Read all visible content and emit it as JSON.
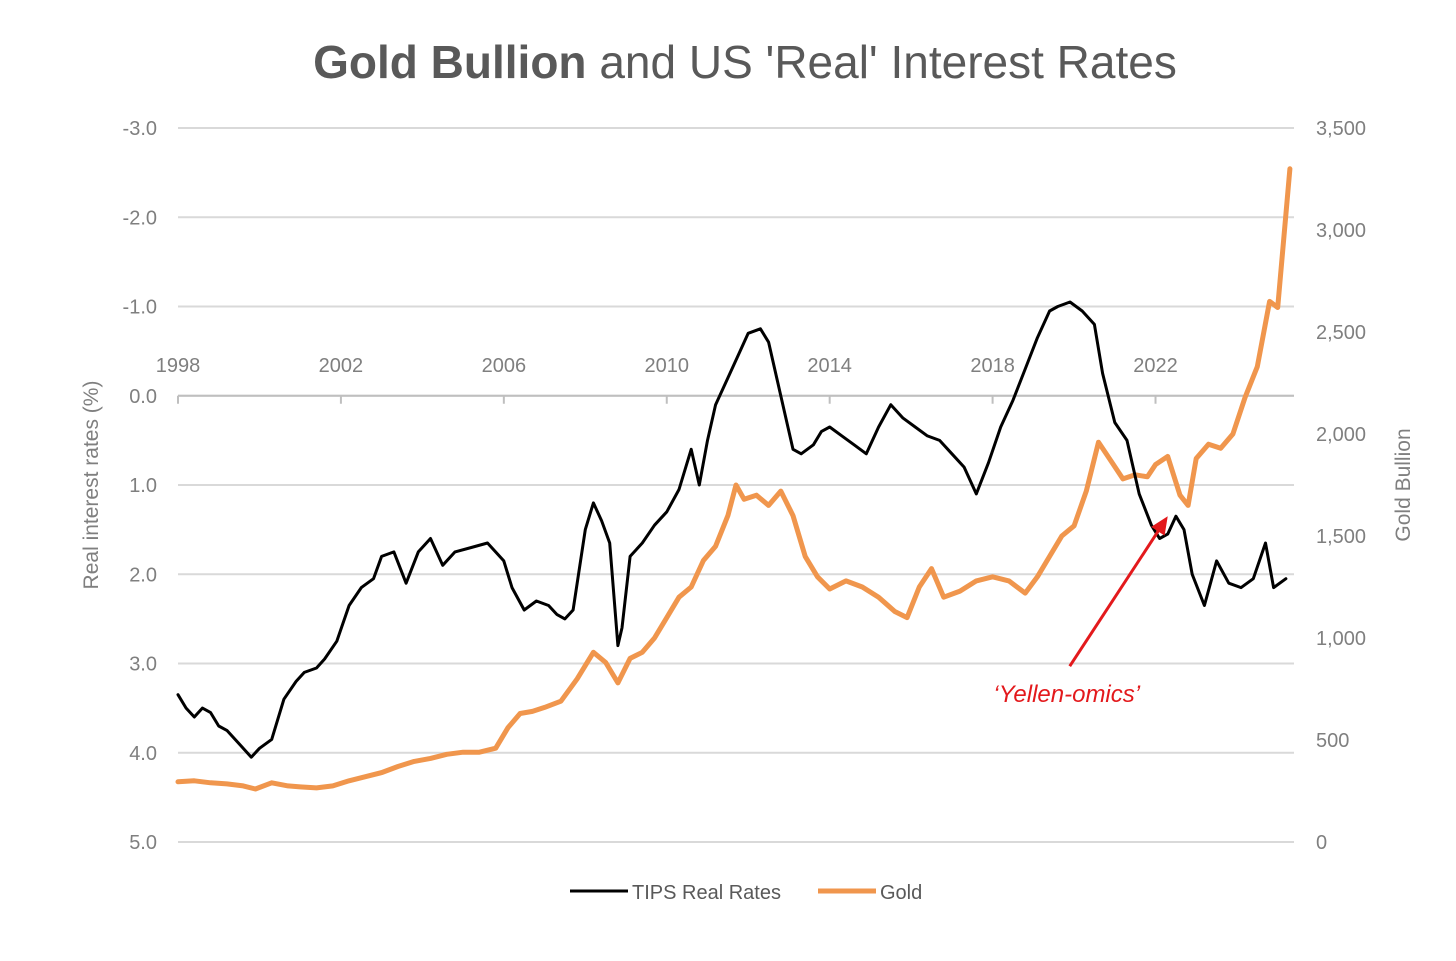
{
  "chart_data": {
    "type": "line",
    "title": {
      "bold": "Gold Bullion",
      "rest": " and US 'Real' Interest Rates"
    },
    "left_axis": {
      "label": "Real interest rates (%)",
      "range": [
        -3.0,
        5.0
      ],
      "inverted": true,
      "ticks": [
        "-3.0",
        "-2.0",
        "-1.0",
        "0.0",
        "1.0",
        "2.0",
        "3.0",
        "4.0",
        "5.0"
      ],
      "tick_values": [
        -3,
        -2,
        -1,
        0,
        1,
        2,
        3,
        4,
        5
      ]
    },
    "right_axis": {
      "label": "Gold Bullion",
      "range": [
        0,
        3500
      ],
      "ticks": [
        "0",
        "500",
        "1,000",
        "1,500",
        "2,000",
        "2,500",
        "3,000",
        "3,500"
      ],
      "tick_values": [
        0,
        500,
        1000,
        1500,
        2000,
        2500,
        3000,
        3500
      ]
    },
    "x_axis": {
      "range": [
        1998.0,
        2025.4
      ],
      "ticks": [
        "1998",
        "2002",
        "2006",
        "2010",
        "2014",
        "2018",
        "2022"
      ],
      "tick_values": [
        1998,
        2002,
        2006,
        2010,
        2014,
        2018,
        2022
      ]
    },
    "grid": true,
    "legend_position": "bottom",
    "colors": {
      "tips": "#000000",
      "gold": "#f0964d",
      "annotation": "#e3191c",
      "grid": "#d9d9d9"
    },
    "annotation": {
      "text": "‘Yellen-omics’",
      "x": 2022.3,
      "y_real_rate": 1.35
    },
    "series": [
      {
        "name": "TIPS Real Rates",
        "axis": "left",
        "x": [
          1998.0,
          1998.2,
          1998.4,
          1998.6,
          1998.8,
          1999.0,
          1999.2,
          1999.5,
          1999.8,
          2000.0,
          2000.3,
          2000.6,
          2000.9,
          2001.1,
          2001.4,
          2001.6,
          2001.9,
          2002.2,
          2002.5,
          2002.8,
          2003.0,
          2003.3,
          2003.6,
          2003.9,
          2004.2,
          2004.5,
          2004.8,
          2005.2,
          2005.6,
          2006.0,
          2006.2,
          2006.5,
          2006.8,
          2007.1,
          2007.3,
          2007.5,
          2007.7,
          2008.0,
          2008.2,
          2008.4,
          2008.6,
          2008.8,
          2008.9,
          2009.1,
          2009.4,
          2009.7,
          2010.0,
          2010.3,
          2010.6,
          2010.8,
          2011.0,
          2011.2,
          2011.5,
          2011.8,
          2012.0,
          2012.3,
          2012.5,
          2012.8,
          2013.1,
          2013.3,
          2013.6,
          2013.8,
          2014.0,
          2014.3,
          2014.6,
          2014.9,
          2015.2,
          2015.5,
          2015.8,
          2016.1,
          2016.4,
          2016.7,
          2017.0,
          2017.3,
          2017.6,
          2017.9,
          2018.2,
          2018.5,
          2018.8,
          2019.1,
          2019.4,
          2019.6,
          2019.9,
          2020.2,
          2020.5,
          2020.7,
          2021.0,
          2021.3,
          2021.6,
          2021.9,
          2022.1,
          2022.3,
          2022.5,
          2022.7,
          2022.9,
          2023.2,
          2023.5,
          2023.8,
          2024.1,
          2024.4,
          2024.7,
          2024.9,
          2025.2
        ],
        "y": [
          3.35,
          3.5,
          3.6,
          3.5,
          3.55,
          3.7,
          3.75,
          3.9,
          4.05,
          3.95,
          3.85,
          3.4,
          3.2,
          3.1,
          3.05,
          2.95,
          2.75,
          2.35,
          2.15,
          2.05,
          1.8,
          1.75,
          2.1,
          1.75,
          1.6,
          1.9,
          1.75,
          1.7,
          1.65,
          1.85,
          2.15,
          2.4,
          2.3,
          2.35,
          2.45,
          2.5,
          2.4,
          1.5,
          1.2,
          1.4,
          1.65,
          2.8,
          2.6,
          1.8,
          1.65,
          1.45,
          1.3,
          1.05,
          0.6,
          1.0,
          0.5,
          0.1,
          -0.2,
          -0.5,
          -0.7,
          -0.75,
          -0.6,
          0.0,
          0.6,
          0.65,
          0.55,
          0.4,
          0.35,
          0.45,
          0.55,
          0.65,
          0.35,
          0.1,
          0.25,
          0.35,
          0.45,
          0.5,
          0.65,
          0.8,
          1.1,
          0.75,
          0.35,
          0.05,
          -0.3,
          -0.65,
          -0.95,
          -1.0,
          -1.05,
          -0.95,
          -0.8,
          -0.25,
          0.3,
          0.5,
          1.1,
          1.45,
          1.6,
          1.55,
          1.35,
          1.5,
          2.0,
          2.35,
          1.85,
          2.1,
          2.15,
          2.05,
          1.65,
          2.15,
          2.05
        ],
        "values": [
          3.35,
          3.5,
          3.6,
          3.5,
          3.55,
          3.7,
          3.75,
          3.9,
          4.05,
          3.95,
          3.85,
          3.4,
          3.2,
          3.1,
          3.05,
          2.95,
          2.75,
          2.35,
          2.15,
          2.05,
          1.8,
          1.75,
          2.1,
          1.75,
          1.6,
          1.9,
          1.75,
          1.7,
          1.65,
          1.85,
          2.15,
          2.4,
          2.3,
          2.35,
          2.45,
          2.5,
          2.4,
          1.5,
          1.2,
          1.4,
          1.65,
          2.8,
          2.6,
          1.8,
          1.65,
          1.45,
          1.3,
          1.05,
          0.6,
          1.0,
          0.5,
          0.1,
          -0.2,
          -0.5,
          -0.7,
          -0.75,
          -0.6,
          0.0,
          0.6,
          0.65,
          0.55,
          0.4,
          0.35,
          0.45,
          0.55,
          0.65,
          0.35,
          0.1,
          0.25,
          0.35,
          0.45,
          0.5,
          0.65,
          0.8,
          1.1,
          0.75,
          0.35,
          0.05,
          -0.3,
          -0.65,
          -0.95,
          -1.0,
          -1.05,
          -0.95,
          -0.8,
          -0.25,
          0.3,
          0.5,
          1.1,
          1.45,
          1.6,
          1.55,
          1.35,
          1.5,
          2.0,
          2.35,
          1.85,
          2.1,
          2.15,
          2.05,
          1.65,
          2.15,
          2.05
        ]
      },
      {
        "name": "Gold",
        "axis": "right",
        "x": [
          1998.0,
          1998.4,
          1998.8,
          1999.2,
          1999.6,
          1999.9,
          2000.3,
          2000.7,
          2001.0,
          2001.4,
          2001.8,
          2002.2,
          2002.6,
          2003.0,
          2003.4,
          2003.8,
          2004.2,
          2004.6,
          2005.0,
          2005.4,
          2005.8,
          2006.1,
          2006.4,
          2006.7,
          2007.0,
          2007.4,
          2007.8,
          2008.2,
          2008.5,
          2008.8,
          2009.1,
          2009.4,
          2009.7,
          2010.0,
          2010.3,
          2010.6,
          2010.9,
          2011.2,
          2011.5,
          2011.7,
          2011.9,
          2012.2,
          2012.5,
          2012.8,
          2013.1,
          2013.4,
          2013.7,
          2014.0,
          2014.4,
          2014.8,
          2015.2,
          2015.6,
          2015.9,
          2016.2,
          2016.5,
          2016.8,
          2017.2,
          2017.6,
          2018.0,
          2018.4,
          2018.8,
          2019.1,
          2019.4,
          2019.7,
          2020.0,
          2020.3,
          2020.6,
          2020.9,
          2021.2,
          2021.5,
          2021.8,
          2022.0,
          2022.3,
          2022.6,
          2022.8,
          2023.0,
          2023.3,
          2023.6,
          2023.9,
          2024.2,
          2024.5,
          2024.8,
          2025.0,
          2025.3
        ],
        "y": [
          295,
          300,
          290,
          285,
          275,
          260,
          290,
          275,
          270,
          265,
          275,
          300,
          320,
          340,
          370,
          395,
          410,
          430,
          440,
          440,
          460,
          560,
          630,
          640,
          660,
          690,
          800,
          930,
          880,
          780,
          900,
          930,
          1000,
          1100,
          1200,
          1250,
          1380,
          1450,
          1600,
          1750,
          1680,
          1700,
          1650,
          1720,
          1600,
          1400,
          1300,
          1240,
          1280,
          1250,
          1200,
          1130,
          1100,
          1250,
          1340,
          1200,
          1230,
          1280,
          1300,
          1280,
          1220,
          1300,
          1400,
          1500,
          1550,
          1720,
          1960,
          1870,
          1780,
          1800,
          1790,
          1850,
          1890,
          1700,
          1650,
          1880,
          1950,
          1930,
          2000,
          2180,
          2330,
          2650,
          2620,
          3300
        ],
        "values": [
          295,
          300,
          290,
          285,
          275,
          260,
          290,
          275,
          270,
          265,
          275,
          300,
          320,
          340,
          370,
          395,
          410,
          430,
          440,
          440,
          460,
          560,
          630,
          640,
          660,
          690,
          800,
          930,
          880,
          780,
          900,
          930,
          1000,
          1100,
          1200,
          1250,
          1380,
          1450,
          1600,
          1750,
          1680,
          1700,
          1650,
          1720,
          1600,
          1400,
          1300,
          1240,
          1280,
          1250,
          1200,
          1130,
          1100,
          1250,
          1340,
          1200,
          1230,
          1280,
          1300,
          1280,
          1220,
          1300,
          1400,
          1500,
          1550,
          1720,
          1960,
          1870,
          1780,
          1800,
          1790,
          1850,
          1890,
          1700,
          1650,
          1880,
          1950,
          1930,
          2000,
          2180,
          2330,
          2650,
          2620,
          3300
        ]
      }
    ]
  },
  "legend": {
    "tips_label": "TIPS Real Rates",
    "gold_label": "Gold"
  }
}
